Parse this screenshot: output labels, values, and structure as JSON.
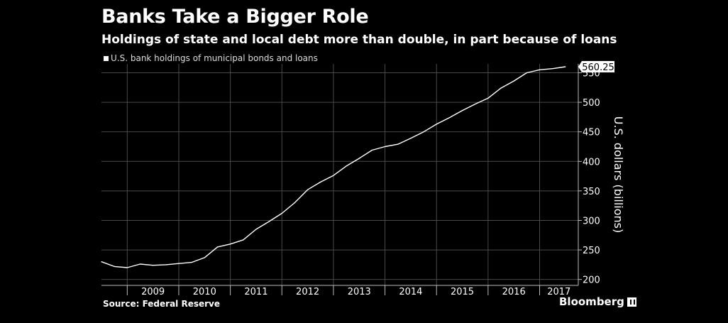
{
  "title": "Banks Take a Bigger Role",
  "subtitle": "Holdings of state and local debt more than double, in part because of loans",
  "source": "Source: Federal Reserve",
  "brand": "Bloomberg",
  "chart_data": {
    "type": "line",
    "title": "Banks Take a Bigger Role",
    "ylabel": "U.S. dollars (billions)",
    "ylim": [
      190,
      565
    ],
    "yticks": [
      200,
      250,
      300,
      350,
      400,
      450,
      500,
      550
    ],
    "x_labels": [
      "2009",
      "2010",
      "2011",
      "2012",
      "2013",
      "2014",
      "2015",
      "2016",
      "2017"
    ],
    "xlim": [
      2008.5,
      2017.75
    ],
    "grid": true,
    "last_value_label": "560.25",
    "series": [
      {
        "name": "U.S. bank holdings of municipal bonds and loans",
        "color": "#ffffff",
        "x": [
          2008.5,
          2008.75,
          2009.0,
          2009.25,
          2009.5,
          2009.75,
          2010.0,
          2010.25,
          2010.5,
          2010.75,
          2011.0,
          2011.25,
          2011.5,
          2011.75,
          2012.0,
          2012.25,
          2012.5,
          2012.75,
          2013.0,
          2013.25,
          2013.5,
          2013.75,
          2014.0,
          2014.25,
          2014.5,
          2014.75,
          2015.0,
          2015.25,
          2015.5,
          2015.75,
          2016.0,
          2016.25,
          2016.5,
          2016.75,
          2017.0,
          2017.25,
          2017.5
        ],
        "values": [
          230,
          222,
          220,
          226,
          224,
          225,
          227,
          229,
          237,
          255,
          260,
          267,
          285,
          298,
          312,
          330,
          352,
          365,
          376,
          392,
          405,
          419,
          425,
          429,
          439,
          450,
          463,
          474,
          486,
          497,
          507,
          524,
          536,
          550,
          555,
          557,
          560.25
        ]
      }
    ]
  }
}
